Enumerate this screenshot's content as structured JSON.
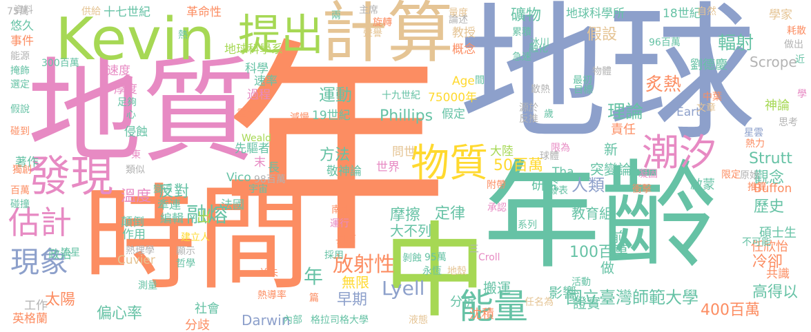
{
  "palette": {
    "green": "#a6d854",
    "orange": "#fc8d62",
    "teal": "#66c2a5",
    "blue": "#8da0cb",
    "pink": "#e78ac3",
    "yellow": "#ffd92f",
    "tan": "#e5c494",
    "gray": "#b3b3b3"
  },
  "words": [
    {
      "text": "年",
      "color": "orange"
    },
    {
      "text": "地球",
      "color": "blue"
    },
    {
      "text": "地質",
      "color": "pink"
    },
    {
      "text": "年齡",
      "color": "teal"
    },
    {
      "text": "時間",
      "color": "orange"
    },
    {
      "text": "中",
      "color": "green"
    },
    {
      "text": "計算",
      "color": "tan"
    },
    {
      "text": "Kevin",
      "color": "green"
    },
    {
      "text": "發現",
      "color": "pink"
    },
    {
      "text": "提出",
      "color": "green"
    },
    {
      "text": "物質",
      "color": "yellow"
    },
    {
      "text": "潮汐",
      "color": "pink"
    },
    {
      "text": "能量",
      "color": "teal"
    },
    {
      "text": "估計",
      "color": "pink"
    },
    {
      "text": "現象",
      "color": "blue"
    },
    {
      "text": "放射性",
      "color": "orange"
    },
    {
      "text": "融熔",
      "color": "teal"
    },
    {
      "text": "Lyell",
      "color": "blue"
    },
    {
      "text": "年",
      "color": "teal"
    },
    {
      "text": "國立臺灣師範大學",
      "color": "teal"
    },
    {
      "text": "400百萬",
      "color": "orange"
    },
    {
      "text": "100百萬",
      "color": "teal"
    },
    {
      "text": "50百萬",
      "color": "yellow"
    },
    {
      "text": "Phillips",
      "color": "teal"
    },
    {
      "text": "運動",
      "color": "teal"
    },
    {
      "text": "方法",
      "color": "teal"
    },
    {
      "text": "理論",
      "color": "teal"
    },
    {
      "text": "假設",
      "color": "tan"
    },
    {
      "text": "輻射",
      "color": "teal"
    },
    {
      "text": "炙熱",
      "color": "orange"
    },
    {
      "text": "礦物",
      "color": "teal"
    },
    {
      "text": "地球科學所",
      "color": "teal"
    },
    {
      "text": "18世紀",
      "color": "teal"
    },
    {
      "text": "十七世紀",
      "color": "teal"
    },
    {
      "text": "革命性",
      "color": "orange"
    },
    {
      "text": "地球科學系",
      "color": "green"
    },
    {
      "text": "太陽",
      "color": "orange"
    },
    {
      "text": "偏心率",
      "color": "teal"
    },
    {
      "text": "溫度",
      "color": "pink"
    },
    {
      "text": "反對",
      "color": "teal"
    },
    {
      "text": "觀念",
      "color": "teal"
    },
    {
      "text": "歷史",
      "color": "teal"
    },
    {
      "text": "Strutt",
      "color": "teal"
    },
    {
      "text": "人類",
      "color": "blue"
    },
    {
      "text": "研究",
      "color": "teal"
    },
    {
      "text": "冷卻",
      "color": "orange"
    },
    {
      "text": "高得以",
      "color": "teal"
    },
    {
      "text": "碩士生",
      "color": "teal"
    },
    {
      "text": "任欣怡",
      "color": "orange"
    },
    {
      "text": "Scrope",
      "color": "gray"
    },
    {
      "text": "劉德慶",
      "color": "teal"
    },
    {
      "text": "責任",
      "color": "orange"
    },
    {
      "text": "神論",
      "color": "green"
    },
    {
      "text": "突變論",
      "color": "teal"
    },
    {
      "text": "啟蒙",
      "color": "teal"
    },
    {
      "text": "新",
      "color": "teal"
    },
    {
      "text": "做",
      "color": "teal"
    },
    {
      "text": "前",
      "color": "teal"
    },
    {
      "text": "教育組",
      "color": "teal"
    },
    {
      "text": "證實",
      "color": "teal"
    },
    {
      "text": "分析",
      "color": "teal"
    },
    {
      "text": "沈積",
      "color": "orange"
    },
    {
      "text": "早期",
      "color": "blue"
    },
    {
      "text": "無限",
      "color": "yellow"
    },
    {
      "text": "定律",
      "color": "teal"
    },
    {
      "text": "摩擦",
      "color": "teal"
    },
    {
      "text": "大不列",
      "color": "teal"
    },
    {
      "text": "影響",
      "color": "teal"
    },
    {
      "text": "搬運",
      "color": "teal"
    },
    {
      "text": "Darwin",
      "color": "blue"
    },
    {
      "text": "社會",
      "color": "teal"
    },
    {
      "text": "分歧",
      "color": "orange"
    },
    {
      "text": "工作",
      "color": "gray"
    },
    {
      "text": "英格蘭",
      "color": "orange"
    },
    {
      "text": "政治",
      "color": "teal"
    },
    {
      "text": "作用",
      "color": "teal"
    },
    {
      "text": "顛倒",
      "color": "teal"
    },
    {
      "text": "編輯",
      "color": "teal"
    },
    {
      "text": "牽連",
      "color": "teal"
    },
    {
      "text": "出",
      "color": "green"
    },
    {
      "text": "Cuvier",
      "color": "tan"
    },
    {
      "text": "法國",
      "color": "teal"
    },
    {
      "text": "Vico",
      "color": "teal"
    },
    {
      "text": "著作",
      "color": "teal"
    },
    {
      "text": "世界",
      "color": "pink"
    },
    {
      "text": "敬神論",
      "color": "teal"
    },
    {
      "text": "問世",
      "color": "tan"
    },
    {
      "text": "大陸",
      "color": "green"
    },
    {
      "text": "Tha",
      "color": "teal"
    },
    {
      "text": "Buffon",
      "color": "orange"
    },
    {
      "text": "共識",
      "color": "orange"
    },
    {
      "text": "事件",
      "color": "orange"
    },
    {
      "text": "悠久",
      "color": "teal"
    },
    {
      "text": "資料",
      "color": "gray"
    },
    {
      "text": "供給",
      "color": "tan"
    },
    {
      "text": "學家",
      "color": "tan"
    },
    {
      "text": "自然",
      "color": "tan"
    },
    {
      "text": "科學",
      "color": "teal"
    },
    {
      "text": "速率",
      "color": "teal"
    },
    {
      "text": "過程",
      "color": "pink"
    },
    {
      "text": "速度",
      "color": "pink"
    },
    {
      "text": "厚度",
      "color": "pink"
    },
    {
      "text": "心",
      "color": "teal"
    },
    {
      "text": "侵蝕",
      "color": "teal"
    },
    {
      "text": "先驅者",
      "color": "teal"
    },
    {
      "text": "Weald",
      "color": "green"
    },
    {
      "text": "末",
      "color": "pink"
    },
    {
      "text": "長",
      "color": "teal"
    },
    {
      "text": "十九世紀",
      "color": "teal"
    },
    {
      "text": "19世紀",
      "color": "teal"
    },
    {
      "text": "75000年",
      "color": "yellow"
    },
    {
      "text": "Age",
      "color": "yellow"
    },
    {
      "text": "假定",
      "color": "teal"
    },
    {
      "text": "Earth",
      "color": "blue"
    },
    {
      "text": "300百萬",
      "color": "teal"
    },
    {
      "text": "96百萬",
      "color": "teal"
    },
    {
      "text": "教授",
      "color": "tan"
    },
    {
      "text": "概念",
      "color": "orange"
    },
    {
      "text": "累積",
      "color": "teal"
    },
    {
      "text": "冰川",
      "color": "teal"
    },
    {
      "text": "量度",
      "color": "tan"
    },
    {
      "text": "主席",
      "color": "gray"
    },
    {
      "text": "旋轉",
      "color": "orange"
    },
    {
      "text": "兩",
      "color": "teal"
    },
    {
      "text": "熱",
      "color": "teal"
    },
    {
      "text": "能源",
      "color": "gray"
    },
    {
      "text": "掩飾",
      "color": "teal"
    },
    {
      "text": "選定",
      "color": "teal"
    },
    {
      "text": "假說",
      "color": "teal"
    },
    {
      "text": "碰到",
      "color": "orange"
    },
    {
      "text": "獨創",
      "color": "orange"
    },
    {
      "text": "百萬",
      "color": "orange"
    },
    {
      "text": "碰撞",
      "color": "teal"
    },
    {
      "text": "流星",
      "color": "teal"
    },
    {
      "text": "測量",
      "color": "teal"
    },
    {
      "text": "熱導率",
      "color": "orange"
    },
    {
      "text": "並未",
      "color": "orange"
    },
    {
      "text": "哲學",
      "color": "teal"
    },
    {
      "text": "建立人",
      "color": "yellow"
    },
    {
      "text": "內部",
      "color": "teal"
    },
    {
      "text": "格拉司格大學",
      "color": "teal"
    },
    {
      "text": "液態",
      "color": "tan"
    },
    {
      "text": "任名為",
      "color": "tan"
    },
    {
      "text": "活動",
      "color": "teal"
    },
    {
      "text": "推算",
      "color": "orange"
    },
    {
      "text": "原始",
      "color": "gray"
    },
    {
      "text": "限定",
      "color": "orange"
    },
    {
      "text": "不可能",
      "color": "teal"
    },
    {
      "text": "凝固",
      "color": "pink"
    },
    {
      "text": "衝擊",
      "color": "orange"
    },
    {
      "text": "熱力",
      "color": "orange"
    },
    {
      "text": "星雲",
      "color": "blue"
    },
    {
      "text": "思考",
      "color": "gray"
    },
    {
      "text": "學",
      "color": "pink"
    },
    {
      "text": "近",
      "color": "teal"
    },
    {
      "text": "做出",
      "color": "gray"
    },
    {
      "text": "耗散",
      "color": "orange"
    },
    {
      "text": "中葉",
      "color": "orange"
    },
    {
      "text": "文章",
      "color": "tan"
    },
    {
      "text": "限為",
      "color": "pink"
    },
    {
      "text": "球體",
      "color": "gray"
    },
    {
      "text": "源於",
      "color": "gray"
    },
    {
      "text": "反推",
      "color": "gray"
    },
    {
      "text": "歲",
      "color": "teal"
    },
    {
      "text": "散熱",
      "color": "gray"
    },
    {
      "text": "最初",
      "color": "teal"
    },
    {
      "text": "目標",
      "color": "teal"
    },
    {
      "text": "物體",
      "color": "gray"
    },
    {
      "text": "融化",
      "color": "teal"
    },
    {
      "text": "急速",
      "color": "teal"
    },
    {
      "text": "聲譽",
      "color": "tan"
    },
    {
      "text": "發表",
      "color": "teal"
    },
    {
      "text": "附帶",
      "color": "orange"
    },
    {
      "text": "承認",
      "color": "pink"
    },
    {
      "text": "系列",
      "color": "teal"
    },
    {
      "text": "Croll",
      "color": "pink"
    },
    {
      "text": "地殼",
      "color": "tan"
    },
    {
      "text": "95萬",
      "color": "teal"
    },
    {
      "text": "永恆",
      "color": "teal"
    },
    {
      "text": "剝蝕",
      "color": "teal"
    },
    {
      "text": "長期",
      "color": "orange"
    },
    {
      "text": "採用",
      "color": "teal"
    },
    {
      "text": "運行",
      "color": "pink"
    },
    {
      "text": "南部",
      "color": "orange"
    },
    {
      "text": "自信",
      "color": "orange"
    },
    {
      "text": "98百萬",
      "color": "gray"
    },
    {
      "text": "宇宙",
      "color": "teal"
    },
    {
      "text": "變涼",
      "color": "teal"
    },
    {
      "text": "熱理學",
      "color": "gray"
    },
    {
      "text": "顯示",
      "color": "gray"
    },
    {
      "text": "類似",
      "color": "gray"
    },
    {
      "text": "東",
      "color": "pink"
    },
    {
      "text": "重力",
      "color": "orange"
    },
    {
      "text": "減慢",
      "color": "orange"
    },
    {
      "text": "足夠",
      "color": "teal"
    },
    {
      "text": "篇",
      "color": "orange"
    },
    {
      "text": "三",
      "color": "gray"
    },
    {
      "text": "間",
      "color": "teal"
    },
    {
      "text": "論述",
      "color": "gray"
    },
    {
      "text": "75萬",
      "color": "gray"
    }
  ]
}
